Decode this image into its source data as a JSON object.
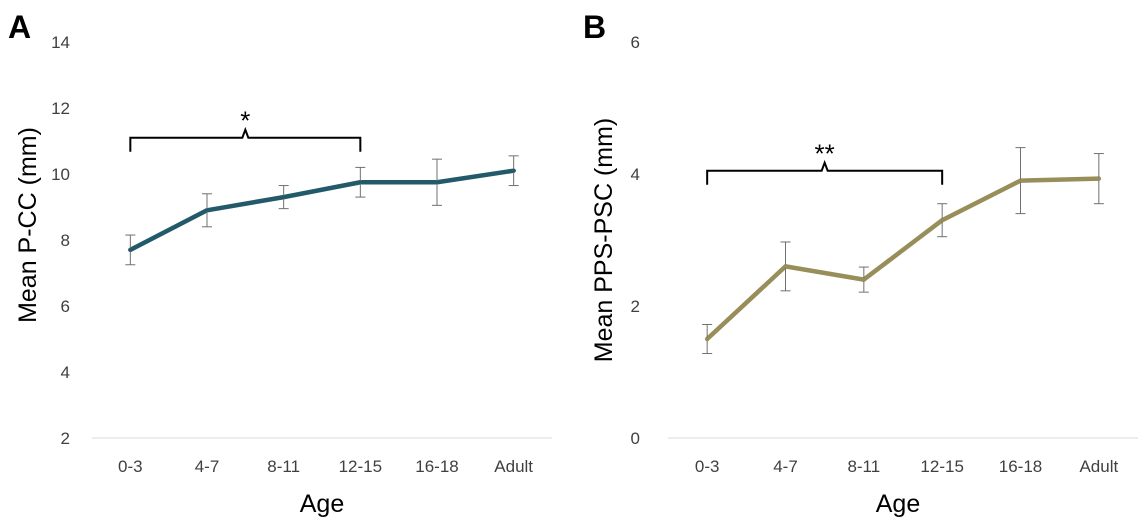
{
  "chart_data": [
    {
      "type": "line",
      "panel_label": "A",
      "xlabel": "Age",
      "ylabel": "Mean P-CC (mm)",
      "categories": [
        "0-3",
        "4-7",
        "8-11",
        "12-15",
        "16-18",
        "Adult"
      ],
      "series": [
        {
          "values": [
            7.7,
            8.9,
            9.3,
            9.75,
            9.75,
            10.1
          ],
          "error": [
            0.45,
            0.5,
            0.35,
            0.45,
            0.7,
            0.45
          ],
          "color": "#225a6a"
        }
      ],
      "ylim": [
        2,
        14
      ],
      "yticks": [
        "2",
        "4",
        "6",
        "8",
        "10",
        "12",
        "14"
      ],
      "grid": false,
      "annotation": {
        "text": "*",
        "from": "0-3",
        "to": "12-15",
        "y": 11.1
      }
    },
    {
      "type": "line",
      "panel_label": "B",
      "xlabel": "Age",
      "ylabel": "Mean PPS-PSC (mm)",
      "categories": [
        "0-3",
        "4-7",
        "8-11",
        "12-15",
        "16-18",
        "Adult"
      ],
      "series": [
        {
          "values": [
            1.5,
            2.6,
            2.4,
            3.3,
            3.9,
            3.93
          ],
          "error": [
            0.22,
            0.37,
            0.19,
            0.25,
            0.5,
            0.38
          ],
          "color": "#978e5a"
        }
      ],
      "ylim": [
        0,
        6
      ],
      "yticks": [
        "0",
        "2",
        "4",
        "6"
      ],
      "grid": false,
      "annotation": {
        "text": "**",
        "from": "0-3",
        "to": "12-15",
        "y": 4.05
      }
    }
  ]
}
